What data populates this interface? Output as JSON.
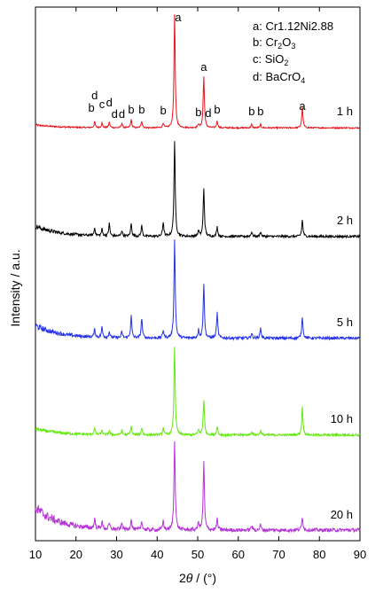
{
  "chart_data": {
    "type": "line",
    "title": "",
    "xlabel": "2θ / (°)",
    "ylabel": "Intensity / a.u.",
    "xlim": [
      10,
      90
    ],
    "xticks": [
      10,
      20,
      30,
      40,
      50,
      60,
      70,
      80,
      90
    ],
    "legend": {
      "placement": "top-right",
      "entries": [
        {
          "key": "a",
          "phase": "Cr1.12Ni2.88"
        },
        {
          "key": "b",
          "phase": "Cr2O3"
        },
        {
          "key": "c",
          "phase": "SiO2"
        },
        {
          "key": "d",
          "phase": "BaCrO4"
        }
      ]
    },
    "peak_labels": [
      {
        "x": 23.8,
        "text": "b"
      },
      {
        "x": 24.6,
        "text": "d"
      },
      {
        "x": 26.4,
        "text": "c"
      },
      {
        "x": 28.2,
        "text": "d"
      },
      {
        "x": 29.5,
        "text": "d"
      },
      {
        "x": 31.3,
        "text": "d"
      },
      {
        "x": 33.6,
        "text": "b"
      },
      {
        "x": 36.2,
        "text": "b"
      },
      {
        "x": 41.5,
        "text": "b"
      },
      {
        "x": 44.3,
        "text": "a"
      },
      {
        "x": 50.2,
        "text": "b"
      },
      {
        "x": 51.5,
        "text": "a"
      },
      {
        "x": 52.6,
        "text": "d"
      },
      {
        "x": 54.8,
        "text": "b"
      },
      {
        "x": 63.3,
        "text": "b"
      },
      {
        "x": 65.5,
        "text": "b"
      },
      {
        "x": 75.8,
        "text": "a"
      }
    ],
    "series": [
      {
        "name": "1 h",
        "color": "#e8141b",
        "peaks": [
          [
            24.6,
            0.05
          ],
          [
            26.4,
            0.04
          ],
          [
            28.2,
            0.05
          ],
          [
            31.3,
            0.04
          ],
          [
            33.6,
            0.07
          ],
          [
            36.2,
            0.06
          ],
          [
            41.5,
            0.04
          ],
          [
            44.3,
            1.0
          ],
          [
            50.2,
            0.03
          ],
          [
            51.5,
            0.45
          ],
          [
            54.8,
            0.06
          ],
          [
            63.3,
            0.03
          ],
          [
            65.5,
            0.03
          ],
          [
            75.8,
            0.18
          ]
        ]
      },
      {
        "name": "2 h",
        "color": "#000000",
        "peaks": [
          [
            24.6,
            0.08
          ],
          [
            26.4,
            0.07
          ],
          [
            28.2,
            0.13
          ],
          [
            31.3,
            0.06
          ],
          [
            33.6,
            0.13
          ],
          [
            36.2,
            0.11
          ],
          [
            41.5,
            0.15
          ],
          [
            44.3,
            1.0
          ],
          [
            50.2,
            0.06
          ],
          [
            51.5,
            0.5
          ],
          [
            54.8,
            0.1
          ],
          [
            63.3,
            0.05
          ],
          [
            65.5,
            0.05
          ],
          [
            75.8,
            0.17
          ]
        ]
      },
      {
        "name": "5 h",
        "color": "#2431e8",
        "peaks": [
          [
            24.6,
            0.08
          ],
          [
            26.4,
            0.1
          ],
          [
            28.2,
            0.06
          ],
          [
            31.3,
            0.06
          ],
          [
            33.6,
            0.22
          ],
          [
            36.2,
            0.2
          ],
          [
            41.5,
            0.08
          ],
          [
            44.3,
            1.0
          ],
          [
            50.2,
            0.08
          ],
          [
            51.5,
            0.55
          ],
          [
            54.8,
            0.25
          ],
          [
            63.3,
            0.05
          ],
          [
            65.5,
            0.1
          ],
          [
            75.8,
            0.22
          ]
        ]
      },
      {
        "name": "10 h",
        "color": "#63e80e",
        "peaks": [
          [
            24.6,
            0.07
          ],
          [
            26.4,
            0.05
          ],
          [
            28.2,
            0.05
          ],
          [
            31.3,
            0.05
          ],
          [
            33.6,
            0.1
          ],
          [
            36.2,
            0.08
          ],
          [
            41.5,
            0.08
          ],
          [
            44.3,
            1.0
          ],
          [
            50.2,
            0.06
          ],
          [
            51.5,
            0.4
          ],
          [
            54.8,
            0.1
          ],
          [
            63.3,
            0.04
          ],
          [
            65.5,
            0.05
          ],
          [
            75.8,
            0.32
          ]
        ]
      },
      {
        "name": "20 h",
        "color": "#b533d6",
        "peaks": [
          [
            24.6,
            0.1
          ],
          [
            26.4,
            0.08
          ],
          [
            28.2,
            0.06
          ],
          [
            31.3,
            0.07
          ],
          [
            33.6,
            0.12
          ],
          [
            36.2,
            0.1
          ],
          [
            41.5,
            0.1
          ],
          [
            44.3,
            1.0
          ],
          [
            50.2,
            0.08
          ],
          [
            51.5,
            0.75
          ],
          [
            54.8,
            0.12
          ],
          [
            63.3,
            0.05
          ],
          [
            65.5,
            0.06
          ],
          [
            75.8,
            0.15
          ]
        ]
      }
    ]
  },
  "text": {
    "ylabel": "Intensity / a.u.",
    "xlabel_theta": "θ",
    "xlabel_prefix": "2",
    "xlabel_suffix": " / (°)",
    "legend_a": "a: Cr1.12Ni2.88",
    "legend_b_pre": "b: Cr",
    "legend_b_sub1": "2",
    "legend_b_mid": "O",
    "legend_b_sub2": "3",
    "legend_c_pre": "c: SiO",
    "legend_c_sub": "2",
    "legend_d_pre": "d: BaCrO",
    "legend_d_sub": "4"
  }
}
